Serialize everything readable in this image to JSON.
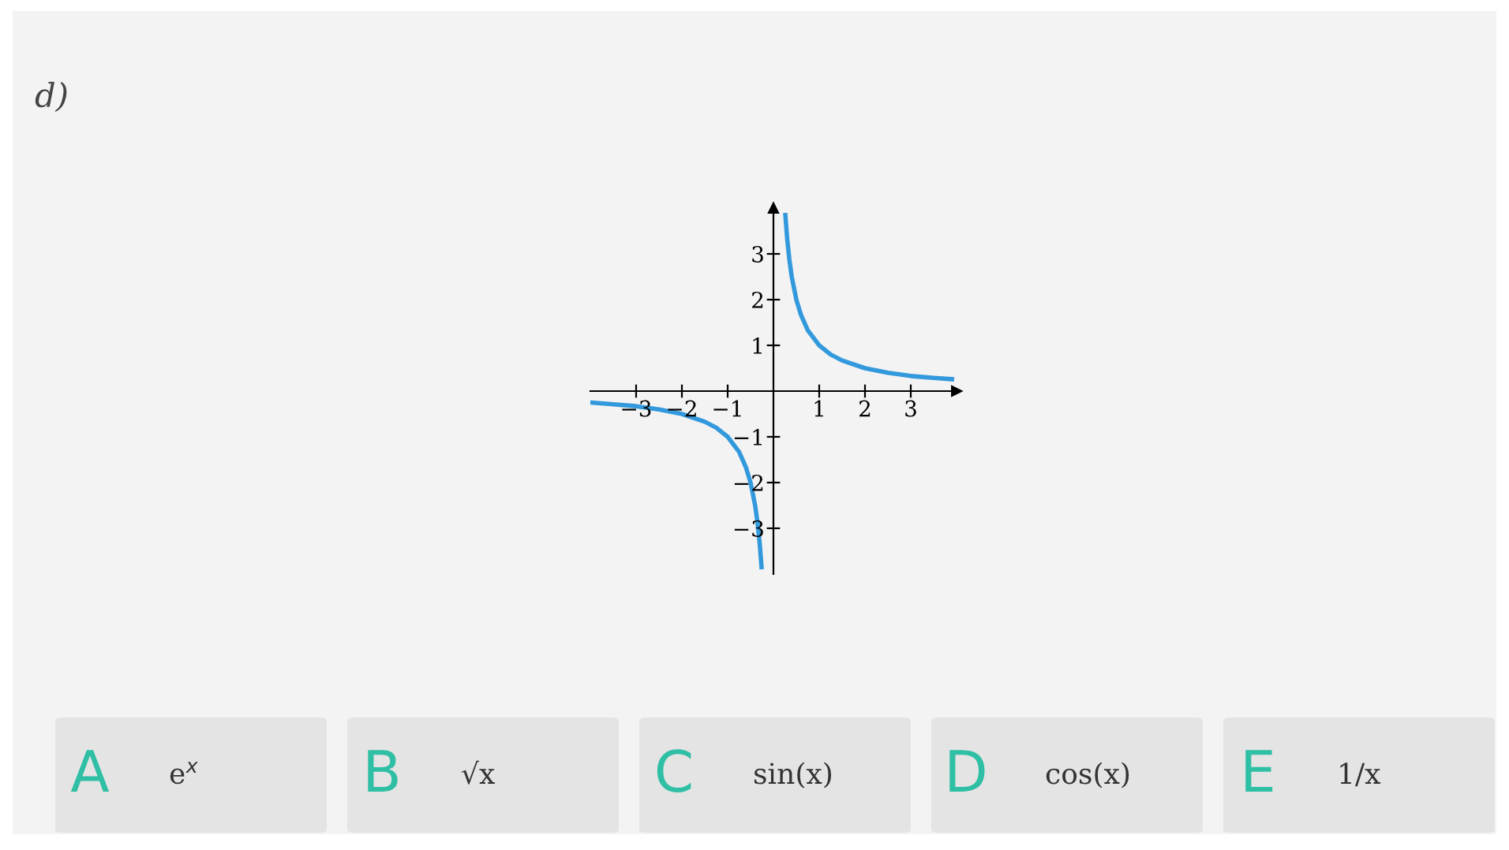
{
  "chart_data": {
    "type": "line",
    "title": "d)",
    "series": [
      {
        "color": "#3399dd",
        "x": [
          0.26,
          0.3,
          0.35,
          0.4,
          0.5,
          0.6,
          0.75,
          1,
          1.25,
          1.5,
          2,
          2.5,
          3,
          3.5,
          3.9
        ],
        "values": [
          3.85,
          3.33,
          2.86,
          2.5,
          2,
          1.67,
          1.33,
          1,
          0.8,
          0.67,
          0.5,
          0.4,
          0.33,
          0.29,
          0.26
        ]
      },
      {
        "color": "#3399dd",
        "x": [
          -3.97,
          -3.5,
          -3,
          -2.5,
          -2,
          -1.5,
          -1.25,
          -1,
          -0.75,
          -0.6,
          -0.5,
          -0.4,
          -0.35,
          -0.3,
          -0.26
        ],
        "values": [
          -0.25,
          -0.29,
          -0.33,
          -0.4,
          -0.5,
          -0.67,
          -0.8,
          -1,
          -1.33,
          -1.67,
          -2,
          -2.5,
          -2.86,
          -3.33,
          -3.85
        ]
      }
    ],
    "xlim": [
      -4,
      4
    ],
    "ylim": [
      -4,
      4
    ],
    "xticks": [
      {
        "value": -3,
        "label": "−3"
      },
      {
        "value": -2,
        "label": "−2"
      },
      {
        "value": -1,
        "label": "−1"
      },
      1,
      2,
      3
    ],
    "yticks": [
      {
        "value": -3,
        "label": "−3"
      },
      {
        "value": -2,
        "label": "−2"
      },
      {
        "value": -1,
        "label": "−1"
      },
      1,
      2,
      3
    ],
    "grid": false,
    "marker": "none",
    "line_style": "solid",
    "annotations": [
      "A",
      "e$^{x}$",
      "B",
      "√x",
      "C",
      "sin(x)",
      "D",
      "cos(x)",
      "E",
      "1/x"
    ]
  }
}
